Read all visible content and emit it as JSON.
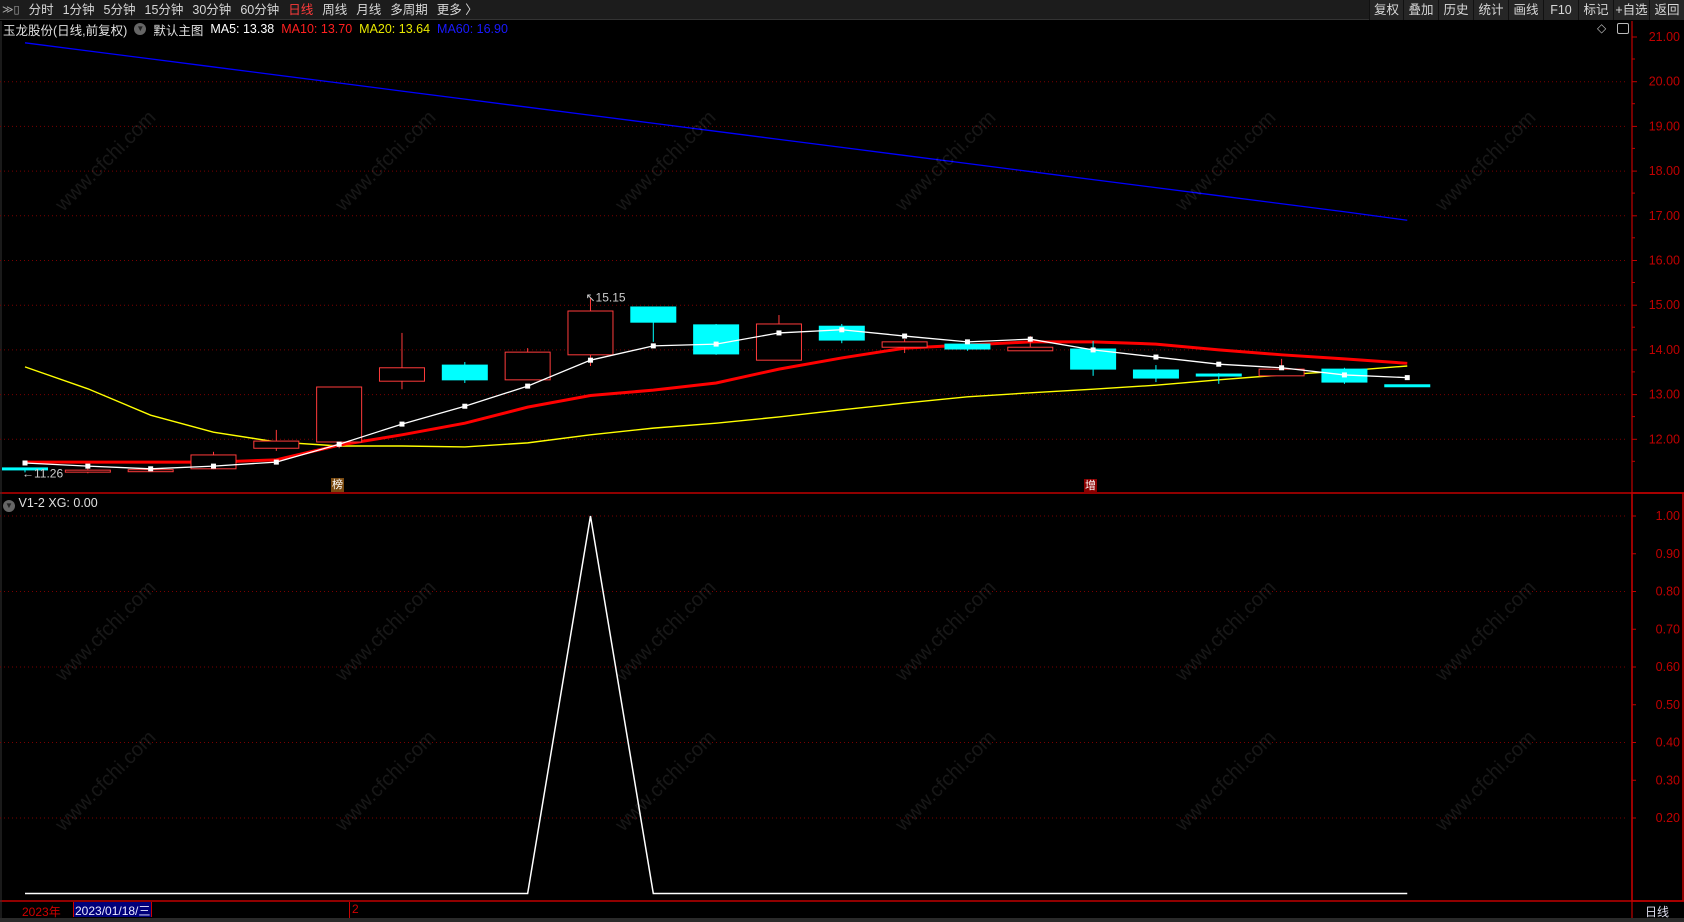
{
  "toolbar": {
    "left_items": [
      {
        "label": "分时"
      },
      {
        "label": "1分钟"
      },
      {
        "label": "5分钟"
      },
      {
        "label": "15分钟"
      },
      {
        "label": "30分钟"
      },
      {
        "label": "60分钟"
      },
      {
        "label": "日线",
        "active": true
      },
      {
        "label": "周线"
      },
      {
        "label": "月线"
      },
      {
        "label": "多周期"
      },
      {
        "label": "更多 〉"
      }
    ],
    "right_buttons": [
      {
        "label": "复权"
      },
      {
        "label": "叠加"
      },
      {
        "label": "历史"
      },
      {
        "label": "统计"
      },
      {
        "label": "画线"
      },
      {
        "label": "F10"
      },
      {
        "label": "标记"
      },
      {
        "label": "+自选"
      },
      {
        "label": "返回"
      }
    ]
  },
  "title": {
    "stock": "玉龙股份(日线,前复权)",
    "template": "默认主图",
    "ma5": "MA5: 13.38",
    "ma10": "MA10: 13.70",
    "ma20": "MA20: 13.64",
    "ma60": "MA60: 16.90"
  },
  "colors": {
    "up": "#ff3b3b",
    "down": "#00ffff",
    "ma5": "#ffffff",
    "ma10": "#ff0000",
    "ma20": "#ffff00",
    "ma60": "#0000ff",
    "axis": "#c00000",
    "bg": "#000000"
  },
  "markers": {
    "bang": "榜",
    "zeng": "增"
  },
  "sub_title": "V1-2  XG: 0.00",
  "date_row": {
    "year": "2023年",
    "cursor_date": "2023/01/18/三",
    "month_mark": "2",
    "period": "日线"
  },
  "watermark": "www.cfchi.com",
  "chart_data": [
    {
      "type": "candlestick",
      "ylim": [
        11.0,
        21.2
      ],
      "yticks": [
        12,
        13,
        14,
        15,
        16,
        17,
        18,
        19,
        20,
        21
      ],
      "ytick_labels": [
        "12.00",
        "13.00",
        "14.00",
        "15.00",
        "16.00",
        "17.00",
        "18.00",
        "19.00",
        "20.00",
        "21.00"
      ],
      "grid": true,
      "annotations": [
        {
          "label": "15.15",
          "index": 9
        },
        {
          "label": "11.26",
          "index": 0
        }
      ],
      "ohlc": [
        [
          11.36,
          11.36,
          11.26,
          11.33
        ],
        [
          11.3,
          11.4,
          11.24,
          11.31
        ],
        [
          11.3,
          11.33,
          11.29,
          11.32
        ],
        [
          11.34,
          11.72,
          11.33,
          11.65
        ],
        [
          11.8,
          12.21,
          11.74,
          11.96
        ],
        [
          11.94,
          13.17,
          11.8,
          13.17
        ],
        [
          13.3,
          14.38,
          13.12,
          13.6
        ],
        [
          13.66,
          13.73,
          13.26,
          13.33
        ],
        [
          13.33,
          14.04,
          13.33,
          13.95
        ],
        [
          13.89,
          15.15,
          13.64,
          14.87
        ],
        [
          14.96,
          14.96,
          14.18,
          14.62
        ],
        [
          14.56,
          14.58,
          13.89,
          13.91
        ],
        [
          13.77,
          14.78,
          13.77,
          14.58
        ],
        [
          14.53,
          14.58,
          14.15,
          14.22
        ],
        [
          14.06,
          14.24,
          13.93,
          14.18
        ],
        [
          14.13,
          14.15,
          13.98,
          14.02
        ],
        [
          13.98,
          14.31,
          13.98,
          14.06
        ],
        [
          14.02,
          14.2,
          13.42,
          13.57
        ],
        [
          13.55,
          13.66,
          13.28,
          13.37
        ],
        [
          13.46,
          13.48,
          13.24,
          13.42
        ],
        [
          13.42,
          13.8,
          13.42,
          13.57
        ],
        [
          13.57,
          13.6,
          13.24,
          13.28
        ],
        [
          13.22,
          13.22,
          13.18,
          13.2
        ]
      ],
      "series": [
        {
          "name": "MA5",
          "values": [
            11.47,
            11.4,
            11.34,
            11.4,
            11.49,
            11.89,
            12.34,
            12.74,
            13.19,
            13.77,
            14.09,
            14.13,
            14.38,
            14.45,
            14.31,
            14.18,
            14.24,
            14.0,
            13.84,
            13.68,
            13.6,
            13.44,
            13.38
          ]
        },
        {
          "name": "MA10",
          "values": [
            11.49,
            11.49,
            11.49,
            11.49,
            11.54,
            11.87,
            12.1,
            12.36,
            12.72,
            12.98,
            13.1,
            13.26,
            13.57,
            13.82,
            14.04,
            14.11,
            14.18,
            14.18,
            14.13,
            14.0,
            13.89,
            13.8,
            13.7
          ]
        },
        {
          "name": "MA20",
          "values": [
            13.62,
            13.13,
            12.54,
            12.16,
            11.94,
            11.85,
            11.85,
            11.83,
            11.92,
            12.1,
            12.25,
            12.36,
            12.5,
            12.66,
            12.81,
            12.95,
            13.04,
            13.12,
            13.21,
            13.33,
            13.44,
            13.53,
            13.64
          ]
        },
        {
          "name": "MA60",
          "values": [
            20.87,
            20.69,
            20.51,
            20.33,
            20.15,
            19.97,
            19.79,
            19.61,
            19.43,
            19.25,
            19.07,
            18.89,
            18.71,
            18.53,
            18.35,
            18.17,
            17.99,
            17.81,
            17.63,
            17.45,
            17.27,
            17.09,
            16.9
          ]
        }
      ]
    },
    {
      "type": "line",
      "name": "V1-2",
      "ylim": [
        0,
        1.05
      ],
      "yticks": [
        0.2,
        0.3,
        0.4,
        0.5,
        0.6,
        0.7,
        0.8,
        0.9,
        1.0
      ],
      "ytick_labels": [
        "0.20",
        "0.30",
        "0.40",
        "0.50",
        "0.60",
        "0.70",
        "0.80",
        "0.90",
        "1.00"
      ],
      "values": [
        0,
        0,
        0,
        0,
        0,
        0,
        0,
        0,
        0,
        1,
        0,
        0,
        0,
        0,
        0,
        0,
        0,
        0,
        0,
        0,
        0,
        0,
        0
      ]
    }
  ]
}
